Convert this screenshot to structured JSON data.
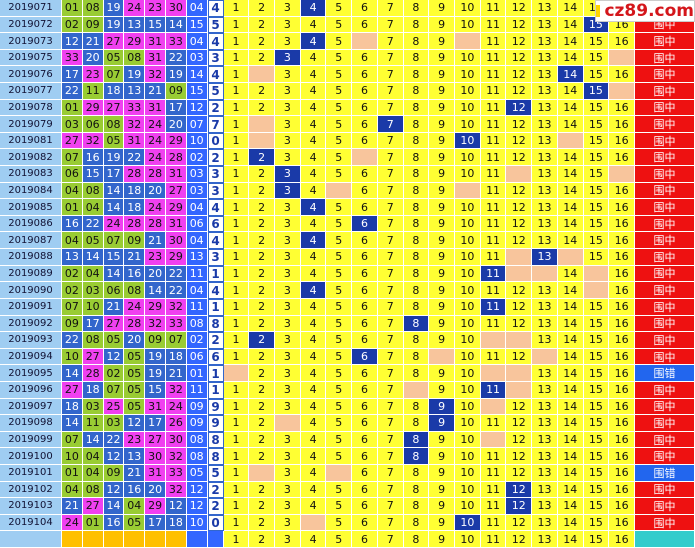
{
  "watermark": "cz89.com",
  "columns": [
    1,
    2,
    3,
    4,
    5,
    6,
    7,
    8,
    9,
    10,
    11,
    12,
    13,
    14,
    15,
    16
  ],
  "colors": {
    "period": "#9fcdf2",
    "low": "#99cc33",
    "mid": "#3366cc",
    "high": "#f040f0",
    "blue": "#3366ff",
    "tail": "#ffffff",
    "cell": "#ffff33",
    "blank": "#f8c59c",
    "hit": "#1a3aa8",
    "hit_result": "#ee1111",
    "miss_result": "#2266ee",
    "footer_ball": "#ffc000",
    "footer_result": "#33cccc"
  },
  "rows": [
    {
      "period": "2019071",
      "balls": [
        "01",
        "08",
        "19",
        "24",
        "23",
        "30",
        "04"
      ],
      "tail": 4,
      "blanks": [],
      "result": "围中"
    },
    {
      "period": "2019072",
      "balls": [
        "02",
        "09",
        "19",
        "13",
        "15",
        "14",
        "15"
      ],
      "tail": 5,
      "blanks": [],
      "result": "围中"
    },
    {
      "period": "2019073",
      "balls": [
        "12",
        "21",
        "27",
        "29",
        "31",
        "33",
        "04"
      ],
      "tail": 4,
      "blanks": [
        6,
        10
      ],
      "result": "围中"
    },
    {
      "period": "2019075",
      "balls": [
        "33",
        "20",
        "05",
        "08",
        "31",
        "22",
        "03"
      ],
      "tail": 3,
      "blanks": [
        16
      ],
      "result": "围中"
    },
    {
      "period": "2019076",
      "balls": [
        "17",
        "23",
        "07",
        "19",
        "32",
        "19",
        "14"
      ],
      "tail": 4,
      "blanks": [
        2
      ],
      "result": "围中"
    },
    {
      "period": "2019077",
      "balls": [
        "22",
        "11",
        "18",
        "13",
        "21",
        "09",
        "15"
      ],
      "tail": 5,
      "blanks": [
        16
      ],
      "result": "围中"
    },
    {
      "period": "2019078",
      "balls": [
        "01",
        "29",
        "27",
        "33",
        "31",
        "17",
        "12"
      ],
      "tail": 2,
      "blanks": [],
      "result": "围中"
    },
    {
      "period": "2019079",
      "balls": [
        "03",
        "06",
        "08",
        "32",
        "24",
        "20",
        "07"
      ],
      "tail": 7,
      "blanks": [
        2
      ],
      "result": "围中"
    },
    {
      "period": "2019081",
      "balls": [
        "27",
        "32",
        "05",
        "31",
        "24",
        "29",
        "10"
      ],
      "tail": 0,
      "blanks": [
        2,
        14
      ],
      "result": "围中"
    },
    {
      "period": "2019082",
      "balls": [
        "07",
        "16",
        "19",
        "22",
        "24",
        "28",
        "02"
      ],
      "tail": 2,
      "blanks": [
        6
      ],
      "result": "围中"
    },
    {
      "period": "2019083",
      "balls": [
        "06",
        "15",
        "17",
        "28",
        "28",
        "31",
        "03"
      ],
      "tail": 3,
      "blanks": [
        12,
        16
      ],
      "result": "围中"
    },
    {
      "period": "2019084",
      "balls": [
        "04",
        "08",
        "14",
        "18",
        "20",
        "27",
        "03"
      ],
      "tail": 3,
      "blanks": [
        5,
        10
      ],
      "result": "围中"
    },
    {
      "period": "2019085",
      "balls": [
        "01",
        "04",
        "14",
        "18",
        "24",
        "29",
        "04"
      ],
      "tail": 4,
      "blanks": [],
      "result": "围中"
    },
    {
      "period": "2019086",
      "balls": [
        "16",
        "22",
        "24",
        "28",
        "28",
        "31",
        "06"
      ],
      "tail": 6,
      "blanks": [],
      "result": "围中"
    },
    {
      "period": "2019087",
      "balls": [
        "04",
        "05",
        "07",
        "09",
        "21",
        "30",
        "04"
      ],
      "tail": 4,
      "blanks": [],
      "result": "围中"
    },
    {
      "period": "2019088",
      "balls": [
        "13",
        "14",
        "15",
        "21",
        "23",
        "29",
        "13"
      ],
      "tail": 3,
      "blanks": [
        12,
        14
      ],
      "result": "围中"
    },
    {
      "period": "2019089",
      "balls": [
        "02",
        "04",
        "14",
        "16",
        "20",
        "22",
        "11"
      ],
      "tail": 1,
      "blanks": [
        12,
        13,
        15
      ],
      "result": "围中"
    },
    {
      "period": "2019090",
      "balls": [
        "02",
        "03",
        "06",
        "08",
        "14",
        "22",
        "04"
      ],
      "tail": 4,
      "blanks": [
        15
      ],
      "result": "围中"
    },
    {
      "period": "2019091",
      "balls": [
        "07",
        "10",
        "21",
        "24",
        "29",
        "32",
        "11"
      ],
      "tail": 1,
      "blanks": [],
      "result": "围中"
    },
    {
      "period": "2019092",
      "balls": [
        "09",
        "17",
        "27",
        "28",
        "32",
        "33",
        "08"
      ],
      "tail": 8,
      "blanks": [],
      "result": "围中"
    },
    {
      "period": "2019093",
      "balls": [
        "22",
        "08",
        "05",
        "20",
        "09",
        "07",
        "02"
      ],
      "tail": 2,
      "blanks": [
        11,
        12
      ],
      "result": "围中"
    },
    {
      "period": "2019094",
      "balls": [
        "10",
        "27",
        "12",
        "05",
        "19",
        "18",
        "06"
      ],
      "tail": 6,
      "blanks": [
        9,
        13
      ],
      "result": "围中"
    },
    {
      "period": "2019095",
      "balls": [
        "14",
        "28",
        "02",
        "05",
        "19",
        "21",
        "01"
      ],
      "tail": 1,
      "blanks": [
        1,
        11,
        12
      ],
      "result": "围错"
    },
    {
      "period": "2019096",
      "balls": [
        "27",
        "18",
        "07",
        "05",
        "15",
        "32",
        "11"
      ],
      "tail": 1,
      "blanks": [
        8,
        12
      ],
      "result": "围中"
    },
    {
      "period": "2019097",
      "balls": [
        "18",
        "03",
        "25",
        "05",
        "31",
        "24",
        "09"
      ],
      "tail": 9,
      "blanks": [
        11
      ],
      "result": "围中"
    },
    {
      "period": "2019098",
      "balls": [
        "14",
        "11",
        "03",
        "12",
        "17",
        "26",
        "09"
      ],
      "tail": 9,
      "blanks": [
        3
      ],
      "result": "围中"
    },
    {
      "period": "2019099",
      "balls": [
        "07",
        "14",
        "22",
        "23",
        "27",
        "30",
        "08"
      ],
      "tail": 8,
      "blanks": [
        11
      ],
      "result": "围中"
    },
    {
      "period": "2019100",
      "balls": [
        "10",
        "04",
        "12",
        "13",
        "30",
        "32",
        "08"
      ],
      "tail": 8,
      "blanks": [],
      "result": "围中"
    },
    {
      "period": "2019101",
      "balls": [
        "01",
        "04",
        "09",
        "21",
        "31",
        "33",
        "05"
      ],
      "tail": 5,
      "blanks": [
        2,
        5
      ],
      "result": "围错"
    },
    {
      "period": "2019102",
      "balls": [
        "04",
        "08",
        "12",
        "16",
        "20",
        "32",
        "12"
      ],
      "tail": 2,
      "blanks": [],
      "result": "围中"
    },
    {
      "period": "2019103",
      "balls": [
        "21",
        "27",
        "14",
        "04",
        "29",
        "12",
        "12"
      ],
      "tail": 2,
      "blanks": [],
      "result": "围中"
    },
    {
      "period": "2019104",
      "balls": [
        "24",
        "01",
        "16",
        "05",
        "17",
        "18",
        "10"
      ],
      "tail": 0,
      "blanks": [
        4
      ],
      "result": "围中"
    }
  ]
}
